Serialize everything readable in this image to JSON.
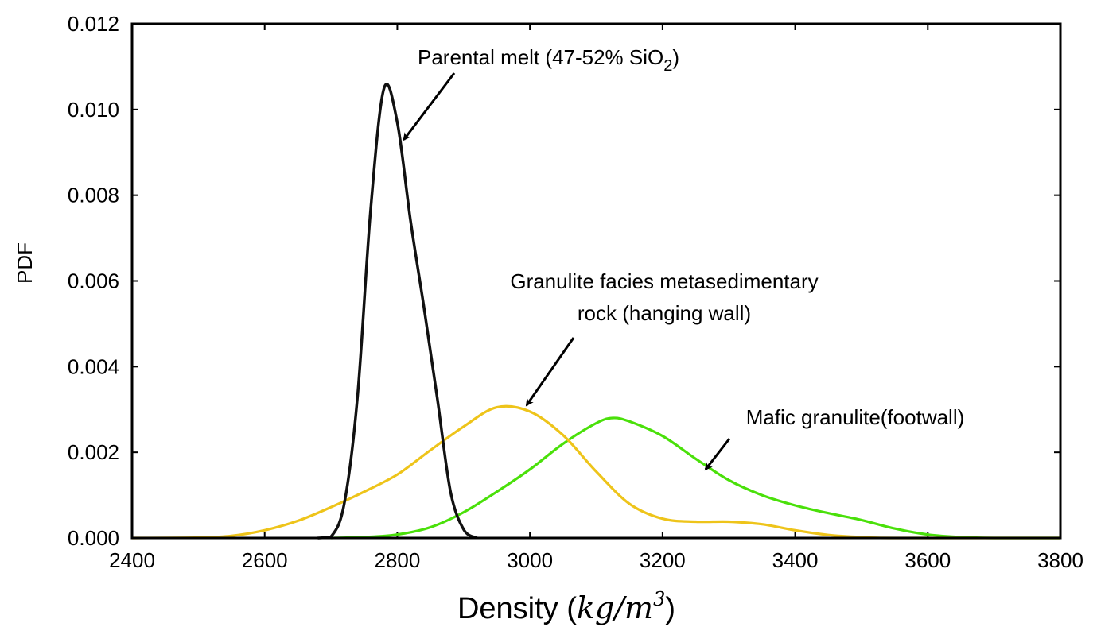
{
  "chart_data": {
    "type": "line",
    "xlabel": "Density",
    "xlabel_unit_base": "kg/m",
    "xlabel_unit_exp": "3",
    "ylabel": "PDF",
    "xlim": [
      2400,
      3800
    ],
    "ylim": [
      0,
      0.012
    ],
    "x_ticks": [
      2400,
      2600,
      2800,
      3000,
      3200,
      3400,
      3600,
      3800
    ],
    "x_tick_labels": [
      "2400",
      "2600",
      "2800",
      "3000",
      "3200",
      "3400",
      "3600",
      "3800"
    ],
    "y_ticks": [
      0,
      0.002,
      0.004,
      0.006,
      0.008,
      0.01,
      0.012
    ],
    "y_tick_labels": [
      "0.000",
      "0.002",
      "0.004",
      "0.006",
      "0.008",
      "0.010",
      "0.012"
    ],
    "grid": false,
    "legend": "none",
    "series": [
      {
        "color": "#111111",
        "points": [
          [
            2680,
            0.0
          ],
          [
            2700,
            3e-05
          ],
          [
            2720,
            0.0008
          ],
          [
            2740,
            0.0033
          ],
          [
            2760,
            0.0077
          ],
          [
            2780,
            0.0105
          ],
          [
            2800,
            0.0097
          ],
          [
            2820,
            0.0074
          ],
          [
            2840,
            0.0054
          ],
          [
            2860,
            0.0033
          ],
          [
            2880,
            0.0011
          ],
          [
            2900,
            0.0002
          ],
          [
            2920,
            0.0
          ]
        ]
      },
      {
        "color": "#eec41a",
        "points": [
          [
            2400,
            0.0
          ],
          [
            2500,
            1e-05
          ],
          [
            2550,
            5e-05
          ],
          [
            2600,
            0.00018
          ],
          [
            2650,
            0.0004
          ],
          [
            2700,
            0.00072
          ],
          [
            2750,
            0.00108
          ],
          [
            2800,
            0.00148
          ],
          [
            2850,
            0.00205
          ],
          [
            2900,
            0.0026
          ],
          [
            2950,
            0.00305
          ],
          [
            3000,
            0.00295
          ],
          [
            3050,
            0.0024
          ],
          [
            3100,
            0.00155
          ],
          [
            3150,
            0.0008
          ],
          [
            3200,
            0.00045
          ],
          [
            3250,
            0.00038
          ],
          [
            3300,
            0.00038
          ],
          [
            3350,
            0.00032
          ],
          [
            3400,
            0.00018
          ],
          [
            3450,
            7e-05
          ],
          [
            3500,
            2e-05
          ],
          [
            3550,
            0.0
          ],
          [
            3800,
            0.0
          ]
        ]
      },
      {
        "color": "#4ae00a",
        "points": [
          [
            2700,
            0.0
          ],
          [
            2750,
            2e-05
          ],
          [
            2800,
            8e-05
          ],
          [
            2850,
            0.00025
          ],
          [
            2900,
            0.0006
          ],
          [
            2950,
            0.00108
          ],
          [
            3000,
            0.0016
          ],
          [
            3050,
            0.0022
          ],
          [
            3100,
            0.00268
          ],
          [
            3125,
            0.0028
          ],
          [
            3150,
            0.00272
          ],
          [
            3200,
            0.00238
          ],
          [
            3250,
            0.00185
          ],
          [
            3300,
            0.00135
          ],
          [
            3350,
            0.001
          ],
          [
            3400,
            0.00076
          ],
          [
            3450,
            0.00058
          ],
          [
            3500,
            0.00042
          ],
          [
            3550,
            0.00022
          ],
          [
            3600,
            8e-05
          ],
          [
            3650,
            2e-05
          ],
          [
            3700,
            0.0
          ],
          [
            3800,
            0.0
          ]
        ]
      }
    ],
    "annotations": [
      {
        "text_main": "Parental melt (47-52% SiO",
        "text_sub": "2",
        "text_end": ")",
        "arrow_to": [
          2810,
          0.0093
        ]
      },
      {
        "lines": [
          "Granulite facies metasedimentary",
          "rock (hanging wall)"
        ],
        "arrow_to": [
          2995,
          0.0031
        ]
      },
      {
        "text": "Mafic granulite(footwall)",
        "arrow_to": [
          3265,
          0.0016
        ]
      }
    ]
  }
}
